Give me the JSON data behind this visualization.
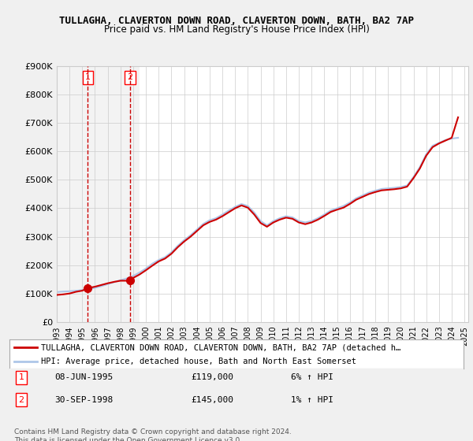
{
  "title": "TULLAGHA, CLAVERTON DOWN ROAD, CLAVERTON DOWN, BATH, BA2 7AP",
  "subtitle": "Price paid vs. HM Land Registry's House Price Index (HPI)",
  "ylabel_top": "£900K",
  "ylim": [
    0,
    900000
  ],
  "yticks": [
    0,
    100000,
    200000,
    300000,
    400000,
    500000,
    600000,
    700000,
    800000,
    900000
  ],
  "ytick_labels": [
    "£0",
    "£100K",
    "£200K",
    "£300K",
    "£400K",
    "£500K",
    "£600K",
    "£700K",
    "£800K",
    "£900K"
  ],
  "hpi_color": "#aec6e8",
  "price_color": "#cc0000",
  "bg_color": "#f5f5f5",
  "plot_bg": "#ffffff",
  "grid_color": "#cccccc",
  "sale1_date": "08-JUN-1995",
  "sale1_price": 119000,
  "sale1_hpi": "6% ↑ HPI",
  "sale1_x": 1995.44,
  "sale2_date": "30-SEP-1998",
  "sale2_price": 145000,
  "sale2_hpi": "1% ↑ HPI",
  "sale2_x": 1998.75,
  "legend_line1": "TULLAGHA, CLAVERTON DOWN ROAD, CLAVERTON DOWN, BATH, BA2 7AP (detached h…",
  "legend_line2": "HPI: Average price, detached house, Bath and North East Somerset",
  "footer": "Contains HM Land Registry data © Crown copyright and database right 2024.\nThis data is licensed under the Open Government Licence v3.0.",
  "xticks": [
    1993,
    1994,
    1995,
    1996,
    1997,
    1998,
    1999,
    2000,
    2001,
    2002,
    2003,
    2004,
    2005,
    2006,
    2007,
    2008,
    2009,
    2010,
    2011,
    2012,
    2013,
    2014,
    2015,
    2016,
    2017,
    2018,
    2019,
    2020,
    2021,
    2022,
    2023,
    2024,
    2025
  ],
  "hpi_data_x": [
    1993.0,
    1993.5,
    1994.0,
    1994.5,
    1995.0,
    1995.5,
    1996.0,
    1996.5,
    1997.0,
    1997.5,
    1998.0,
    1998.5,
    1999.0,
    1999.5,
    2000.0,
    2000.5,
    2001.0,
    2001.5,
    2002.0,
    2002.5,
    2003.0,
    2003.5,
    2004.0,
    2004.5,
    2005.0,
    2005.5,
    2006.0,
    2006.5,
    2007.0,
    2007.5,
    2008.0,
    2008.5,
    2009.0,
    2009.5,
    2010.0,
    2010.5,
    2011.0,
    2011.5,
    2012.0,
    2012.5,
    2013.0,
    2013.5,
    2014.0,
    2014.5,
    2015.0,
    2015.5,
    2016.0,
    2016.5,
    2017.0,
    2017.5,
    2018.0,
    2018.5,
    2019.0,
    2019.5,
    2020.0,
    2020.5,
    2021.0,
    2021.5,
    2022.0,
    2022.5,
    2023.0,
    2023.5,
    2024.0,
    2024.5
  ],
  "hpi_data_y": [
    105000,
    107000,
    108000,
    110000,
    112000,
    116000,
    120000,
    126000,
    133000,
    140000,
    147000,
    153000,
    162000,
    174000,
    188000,
    205000,
    218000,
    228000,
    245000,
    268000,
    288000,
    305000,
    325000,
    345000,
    358000,
    365000,
    378000,
    392000,
    405000,
    415000,
    408000,
    385000,
    355000,
    340000,
    355000,
    365000,
    372000,
    368000,
    355000,
    350000,
    355000,
    365000,
    378000,
    392000,
    400000,
    408000,
    420000,
    435000,
    445000,
    455000,
    462000,
    468000,
    470000,
    472000,
    475000,
    480000,
    510000,
    545000,
    590000,
    620000,
    630000,
    640000,
    645000,
    648000
  ],
  "price_line_x": [
    1993.0,
    1993.5,
    1994.0,
    1994.5,
    1995.0,
    1995.44,
    1996.0,
    1996.5,
    1997.0,
    1997.5,
    1998.0,
    1998.75,
    1999.0,
    1999.5,
    2000.0,
    2000.5,
    2001.0,
    2001.5,
    2002.0,
    2002.5,
    2003.0,
    2003.5,
    2004.0,
    2004.5,
    2005.0,
    2005.5,
    2006.0,
    2006.5,
    2007.0,
    2007.5,
    2008.0,
    2008.5,
    2009.0,
    2009.5,
    2010.0,
    2010.5,
    2011.0,
    2011.5,
    2012.0,
    2012.5,
    2013.0,
    2013.5,
    2014.0,
    2014.5,
    2015.0,
    2015.5,
    2016.0,
    2016.5,
    2017.0,
    2017.5,
    2018.0,
    2018.5,
    2019.0,
    2019.5,
    2020.0,
    2020.5,
    2021.0,
    2021.5,
    2022.0,
    2022.5,
    2023.0,
    2023.5,
    2024.0,
    2024.5
  ],
  "price_line_y": [
    95000,
    97000,
    100000,
    106000,
    110000,
    119000,
    124000,
    130000,
    136000,
    141000,
    145000,
    145000,
    155000,
    167000,
    182000,
    198000,
    213000,
    223000,
    240000,
    263000,
    283000,
    300000,
    320000,
    340000,
    352000,
    360000,
    372000,
    386000,
    400000,
    410000,
    402000,
    378000,
    348000,
    335000,
    350000,
    360000,
    367000,
    363000,
    350000,
    344000,
    350000,
    360000,
    373000,
    387000,
    395000,
    402000,
    415000,
    430000,
    440000,
    450000,
    457000,
    463000,
    465000,
    467000,
    470000,
    476000,
    506000,
    540000,
    585000,
    615000,
    628000,
    638000,
    648000,
    720000
  ]
}
